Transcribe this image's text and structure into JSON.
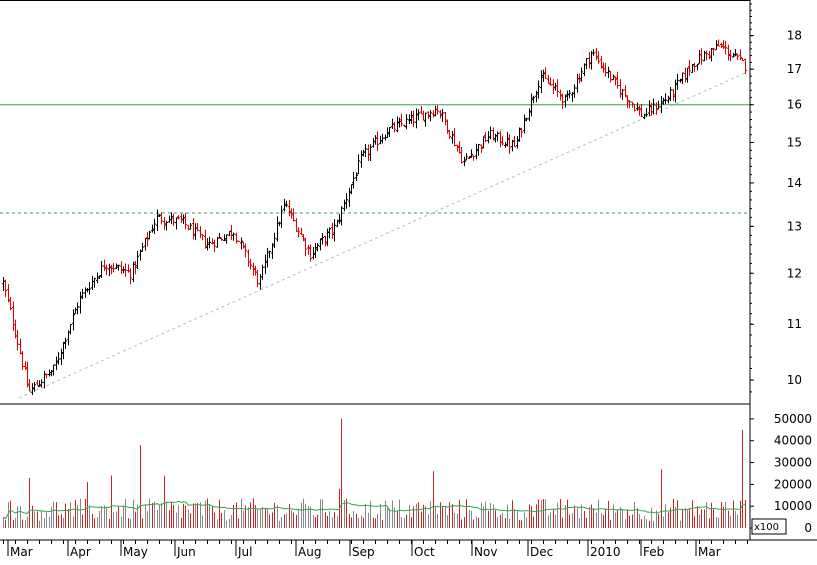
{
  "chart_data": [
    {
      "type": "candlestick",
      "panel": "price",
      "y_scale": "log",
      "ylim": [
        9.6,
        19.0
      ],
      "yticks": [
        "10",
        "11",
        "12",
        "13",
        "14",
        "15",
        "16",
        "17",
        "18"
      ],
      "grid": false,
      "horizontal_lines": [
        {
          "value": 16.0,
          "style": "solid",
          "color": "#2ea84f"
        },
        {
          "value": 13.3,
          "style": "dashed",
          "color": "#2ea84f"
        }
      ],
      "trendline": {
        "from": [
          "Mar",
          9.7
        ],
        "to": [
          "Mar",
          16.9
        ],
        "style": "dotted",
        "color": "#bbbbbb"
      },
      "colors": {
        "up": "#000000",
        "down": "#e00000"
      },
      "price_path": [
        [
          "Mar",
          11.8
        ],
        [
          "Mar",
          9.8
        ],
        [
          "Mar",
          10.2
        ],
        [
          "Apr",
          11.5
        ],
        [
          "Apr",
          12.2
        ],
        [
          "May",
          12.0
        ],
        [
          "May",
          13.2
        ],
        [
          "Jun",
          13.1
        ],
        [
          "Jun",
          12.6
        ],
        [
          "Jul",
          12.9
        ],
        [
          "Jul",
          11.8
        ],
        [
          "Aug",
          13.5
        ],
        [
          "Aug",
          12.4
        ],
        [
          "Aug",
          13.0
        ],
        [
          "Sep",
          14.6
        ],
        [
          "Sep",
          15.3
        ],
        [
          "Oct",
          15.6
        ],
        [
          "Oct",
          15.9
        ],
        [
          "Nov",
          14.5
        ],
        [
          "Nov",
          15.2
        ],
        [
          "Dec",
          14.9
        ],
        [
          "Dec",
          16.8
        ],
        [
          "2010",
          16.1
        ],
        [
          "2010",
          17.5
        ],
        [
          "Feb",
          16.5
        ],
        [
          "Feb",
          15.7
        ],
        [
          "Mar",
          16.2
        ],
        [
          "Mar",
          17.2
        ],
        [
          "Mar",
          17.7
        ],
        [
          "Mar",
          17.1
        ]
      ]
    },
    {
      "type": "bar",
      "panel": "volume",
      "unit_label": "x100",
      "ylim": [
        0,
        55000
      ],
      "yticks": [
        "0",
        "10000",
        "20000",
        "30000",
        "40000",
        "50000"
      ],
      "moving_average_color": "#2ea84f",
      "colors": {
        "up": "#888888",
        "down": "#cc2222"
      },
      "typical_volume": 8000,
      "spikes": [
        [
          "Mar",
          23000
        ],
        [
          "Apr",
          21000
        ],
        [
          "Apr",
          24000
        ],
        [
          "May",
          38000
        ],
        [
          "May",
          24000
        ],
        [
          "Aug",
          50000
        ],
        [
          "Aug",
          18000
        ],
        [
          "Oct",
          26000
        ],
        [
          "Feb",
          27000
        ],
        [
          "Mar",
          45000
        ]
      ]
    }
  ],
  "x_axis": {
    "months": [
      "Mar",
      "Apr",
      "May",
      "Jun",
      "Jul",
      "Aug",
      "Sep",
      "Oct",
      "Nov",
      "Dec",
      "2010",
      "Feb",
      "Mar"
    ]
  }
}
